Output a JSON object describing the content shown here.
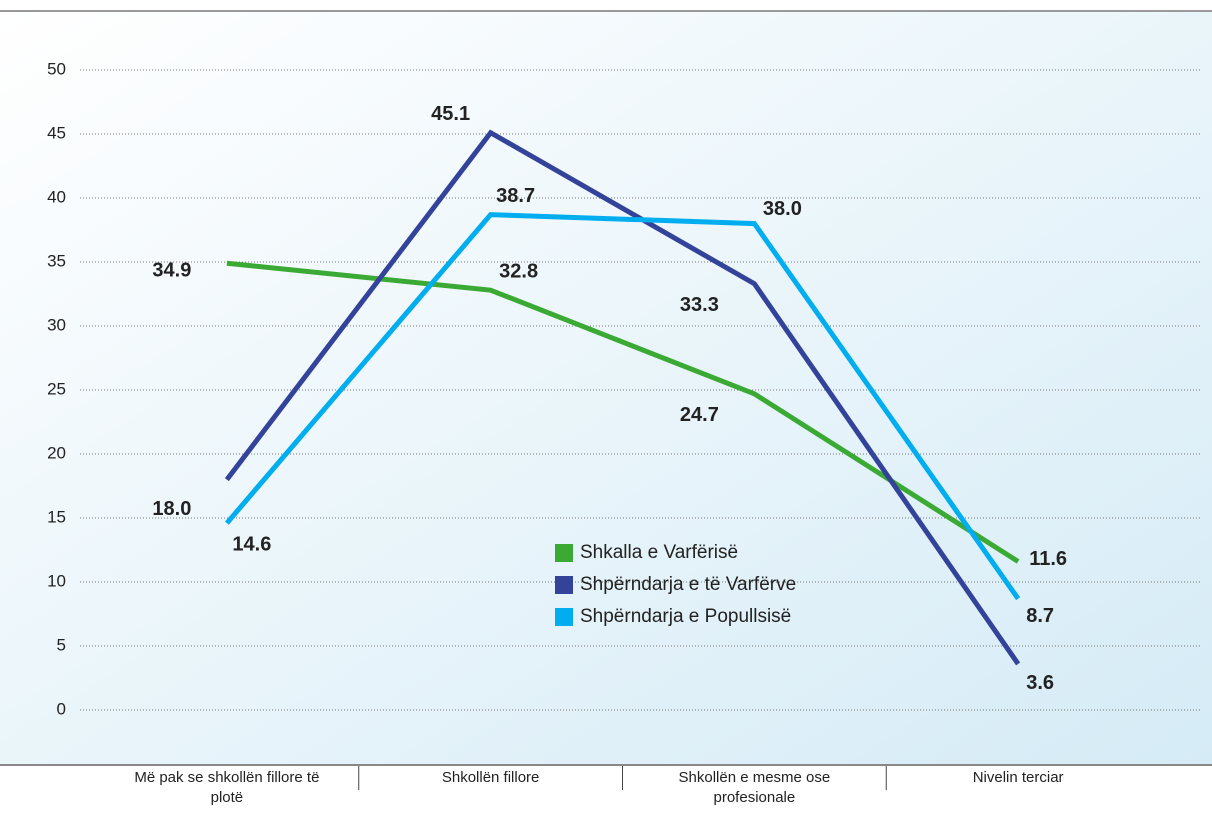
{
  "chart_data": {
    "type": "line",
    "categories": [
      "Më pak se shkollën fillore të plotë",
      "Shkollën fillore",
      "Shkollën e mesme ose profesionale",
      "Nivelin terciar"
    ],
    "series": [
      {
        "name": "Shkalla e Varfërisë",
        "color": "#3aaa35",
        "values": [
          34.9,
          32.8,
          24.7,
          11.6
        ],
        "value_labels": [
          "34.9",
          "32.8",
          "24.7",
          "11.6"
        ]
      },
      {
        "name": "Shpërndarja e të Varfërve",
        "color": "#34439a",
        "values": [
          18.0,
          45.1,
          33.3,
          3.6
        ],
        "value_labels": [
          "18.0",
          "45.1",
          "33.3",
          "3.6"
        ]
      },
      {
        "name": "Shpërndarja e Popullsisë",
        "color": "#00aeef",
        "values": [
          14.6,
          38.7,
          38.0,
          8.7
        ],
        "value_labels": [
          "14.6",
          "38.7",
          "38.0",
          "8.7"
        ]
      }
    ],
    "ylim": [
      0,
      50
    ],
    "yticks": [
      0,
      5,
      10,
      15,
      20,
      25,
      30,
      35,
      40,
      45,
      50
    ],
    "grid": true
  }
}
